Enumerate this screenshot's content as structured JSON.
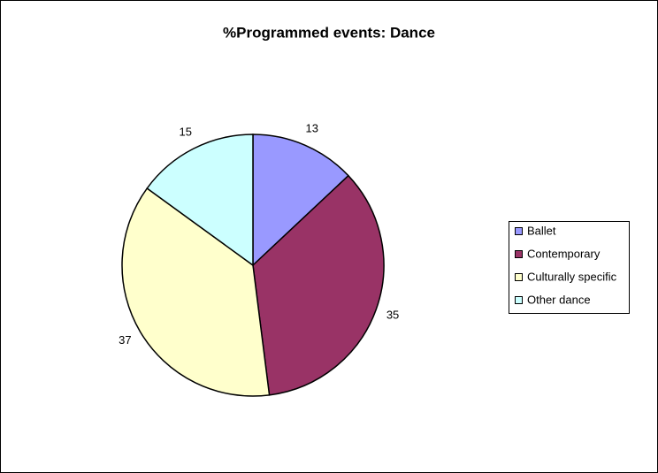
{
  "chart_data": {
    "type": "pie",
    "title": "%Programmed events: Dance",
    "categories": [
      "Ballet",
      "Contemporary",
      "Culturally specific",
      "Other dance"
    ],
    "values": [
      13,
      35,
      37,
      15
    ],
    "colors": [
      "#9999ff",
      "#993366",
      "#ffffcc",
      "#ccffff"
    ],
    "legend": "right"
  }
}
